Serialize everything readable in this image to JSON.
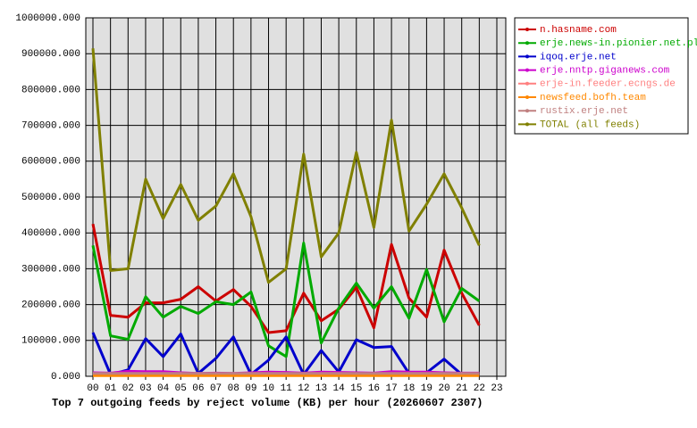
{
  "chart_data": {
    "type": "line",
    "title": "Top 7 outgoing feeds by reject volume (KB) per hour (20260607 2307)",
    "categories": [
      "00",
      "01",
      "02",
      "03",
      "04",
      "05",
      "06",
      "07",
      "08",
      "09",
      "10",
      "11",
      "12",
      "13",
      "14",
      "15",
      "16",
      "17",
      "18",
      "19",
      "20",
      "21",
      "22",
      "23"
    ],
    "ylim": [
      0,
      1000000
    ],
    "yticks": [
      {
        "value": 0,
        "label": "0.000"
      },
      {
        "value": 100000,
        "label": "100000.000"
      },
      {
        "value": 200000,
        "label": "200000.000"
      },
      {
        "value": 300000,
        "label": "300000.000"
      },
      {
        "value": 400000,
        "label": "400000.000"
      },
      {
        "value": 500000,
        "label": "500000.000"
      },
      {
        "value": 600000,
        "label": "600000.000"
      },
      {
        "value": 700000,
        "label": "700000.000"
      },
      {
        "value": 800000,
        "label": "800000.000"
      },
      {
        "value": 900000,
        "label": "900000.000"
      },
      {
        "value": 1000000,
        "label": "1000000.000"
      }
    ],
    "grid": true,
    "legend": "right",
    "series": [
      {
        "name": "n.hasname.com",
        "color": "#cc0000",
        "values": [
          425000,
          170000,
          165000,
          205000,
          205000,
          215000,
          250000,
          210000,
          242000,
          195000,
          122000,
          127000,
          232000,
          155000,
          187000,
          248000,
          135000,
          368000,
          218000,
          165000,
          352000,
          232000,
          142000,
          null
        ]
      },
      {
        "name": "erje.news-in.pionier.net.pl",
        "color": "#00aa00",
        "values": [
          365000,
          113000,
          103000,
          222000,
          165000,
          195000,
          175000,
          208000,
          200000,
          235000,
          85000,
          55000,
          372000,
          93000,
          190000,
          260000,
          190000,
          250000,
          162000,
          298000,
          152000,
          245000,
          210000,
          null
        ]
      },
      {
        "name": "iqoq.erje.net",
        "color": "#0000cc",
        "values": [
          122000,
          5000,
          18000,
          105000,
          55000,
          118000,
          8000,
          50000,
          110000,
          5000,
          45000,
          110000,
          5000,
          72000,
          12000,
          102000,
          80000,
          83000,
          8000,
          10000,
          48000,
          5000,
          3000,
          null
        ]
      },
      {
        "name": "erje.nntp.giganews.com",
        "color": "#cc00cc",
        "values": [
          10000,
          9000,
          14000,
          13000,
          13000,
          10000,
          8000,
          9000,
          8000,
          10000,
          12000,
          11000,
          9000,
          12000,
          11000,
          10000,
          9000,
          13000,
          12000,
          12000,
          10000,
          9000,
          9000,
          null
        ]
      },
      {
        "name": "erje-in.feeder.ecngs.de",
        "color": "#ff8080",
        "values": [
          5000,
          5000,
          5000,
          5000,
          5000,
          5000,
          5000,
          5000,
          5000,
          5000,
          5000,
          5000,
          5000,
          5000,
          5000,
          5000,
          5000,
          5000,
          5000,
          5000,
          5000,
          5000,
          5000,
          null
        ]
      },
      {
        "name": "newsfeed.bofh.team",
        "color": "#ff8800",
        "values": [
          2000,
          2000,
          2000,
          2000,
          2000,
          2000,
          2000,
          2000,
          2000,
          2000,
          2000,
          2000,
          2000,
          2000,
          2000,
          2000,
          2000,
          2000,
          2000,
          2000,
          2000,
          2000,
          2000,
          null
        ]
      },
      {
        "name": "rustix.erje.net",
        "color": "#c08080",
        "values": [
          8000,
          8000,
          8000,
          8000,
          8000,
          8000,
          8000,
          8000,
          8000,
          8000,
          8000,
          8000,
          8000,
          8000,
          8000,
          8000,
          8000,
          8000,
          8000,
          8000,
          8000,
          8000,
          8000,
          null
        ]
      },
      {
        "name": "TOTAL (all feeds)",
        "color": "#808000",
        "values": [
          915000,
          295000,
          300000,
          550000,
          440000,
          535000,
          435000,
          475000,
          565000,
          445000,
          262000,
          300000,
          620000,
          333000,
          400000,
          625000,
          415000,
          715000,
          405000,
          480000,
          565000,
          470000,
          365000,
          null
        ]
      }
    ]
  }
}
